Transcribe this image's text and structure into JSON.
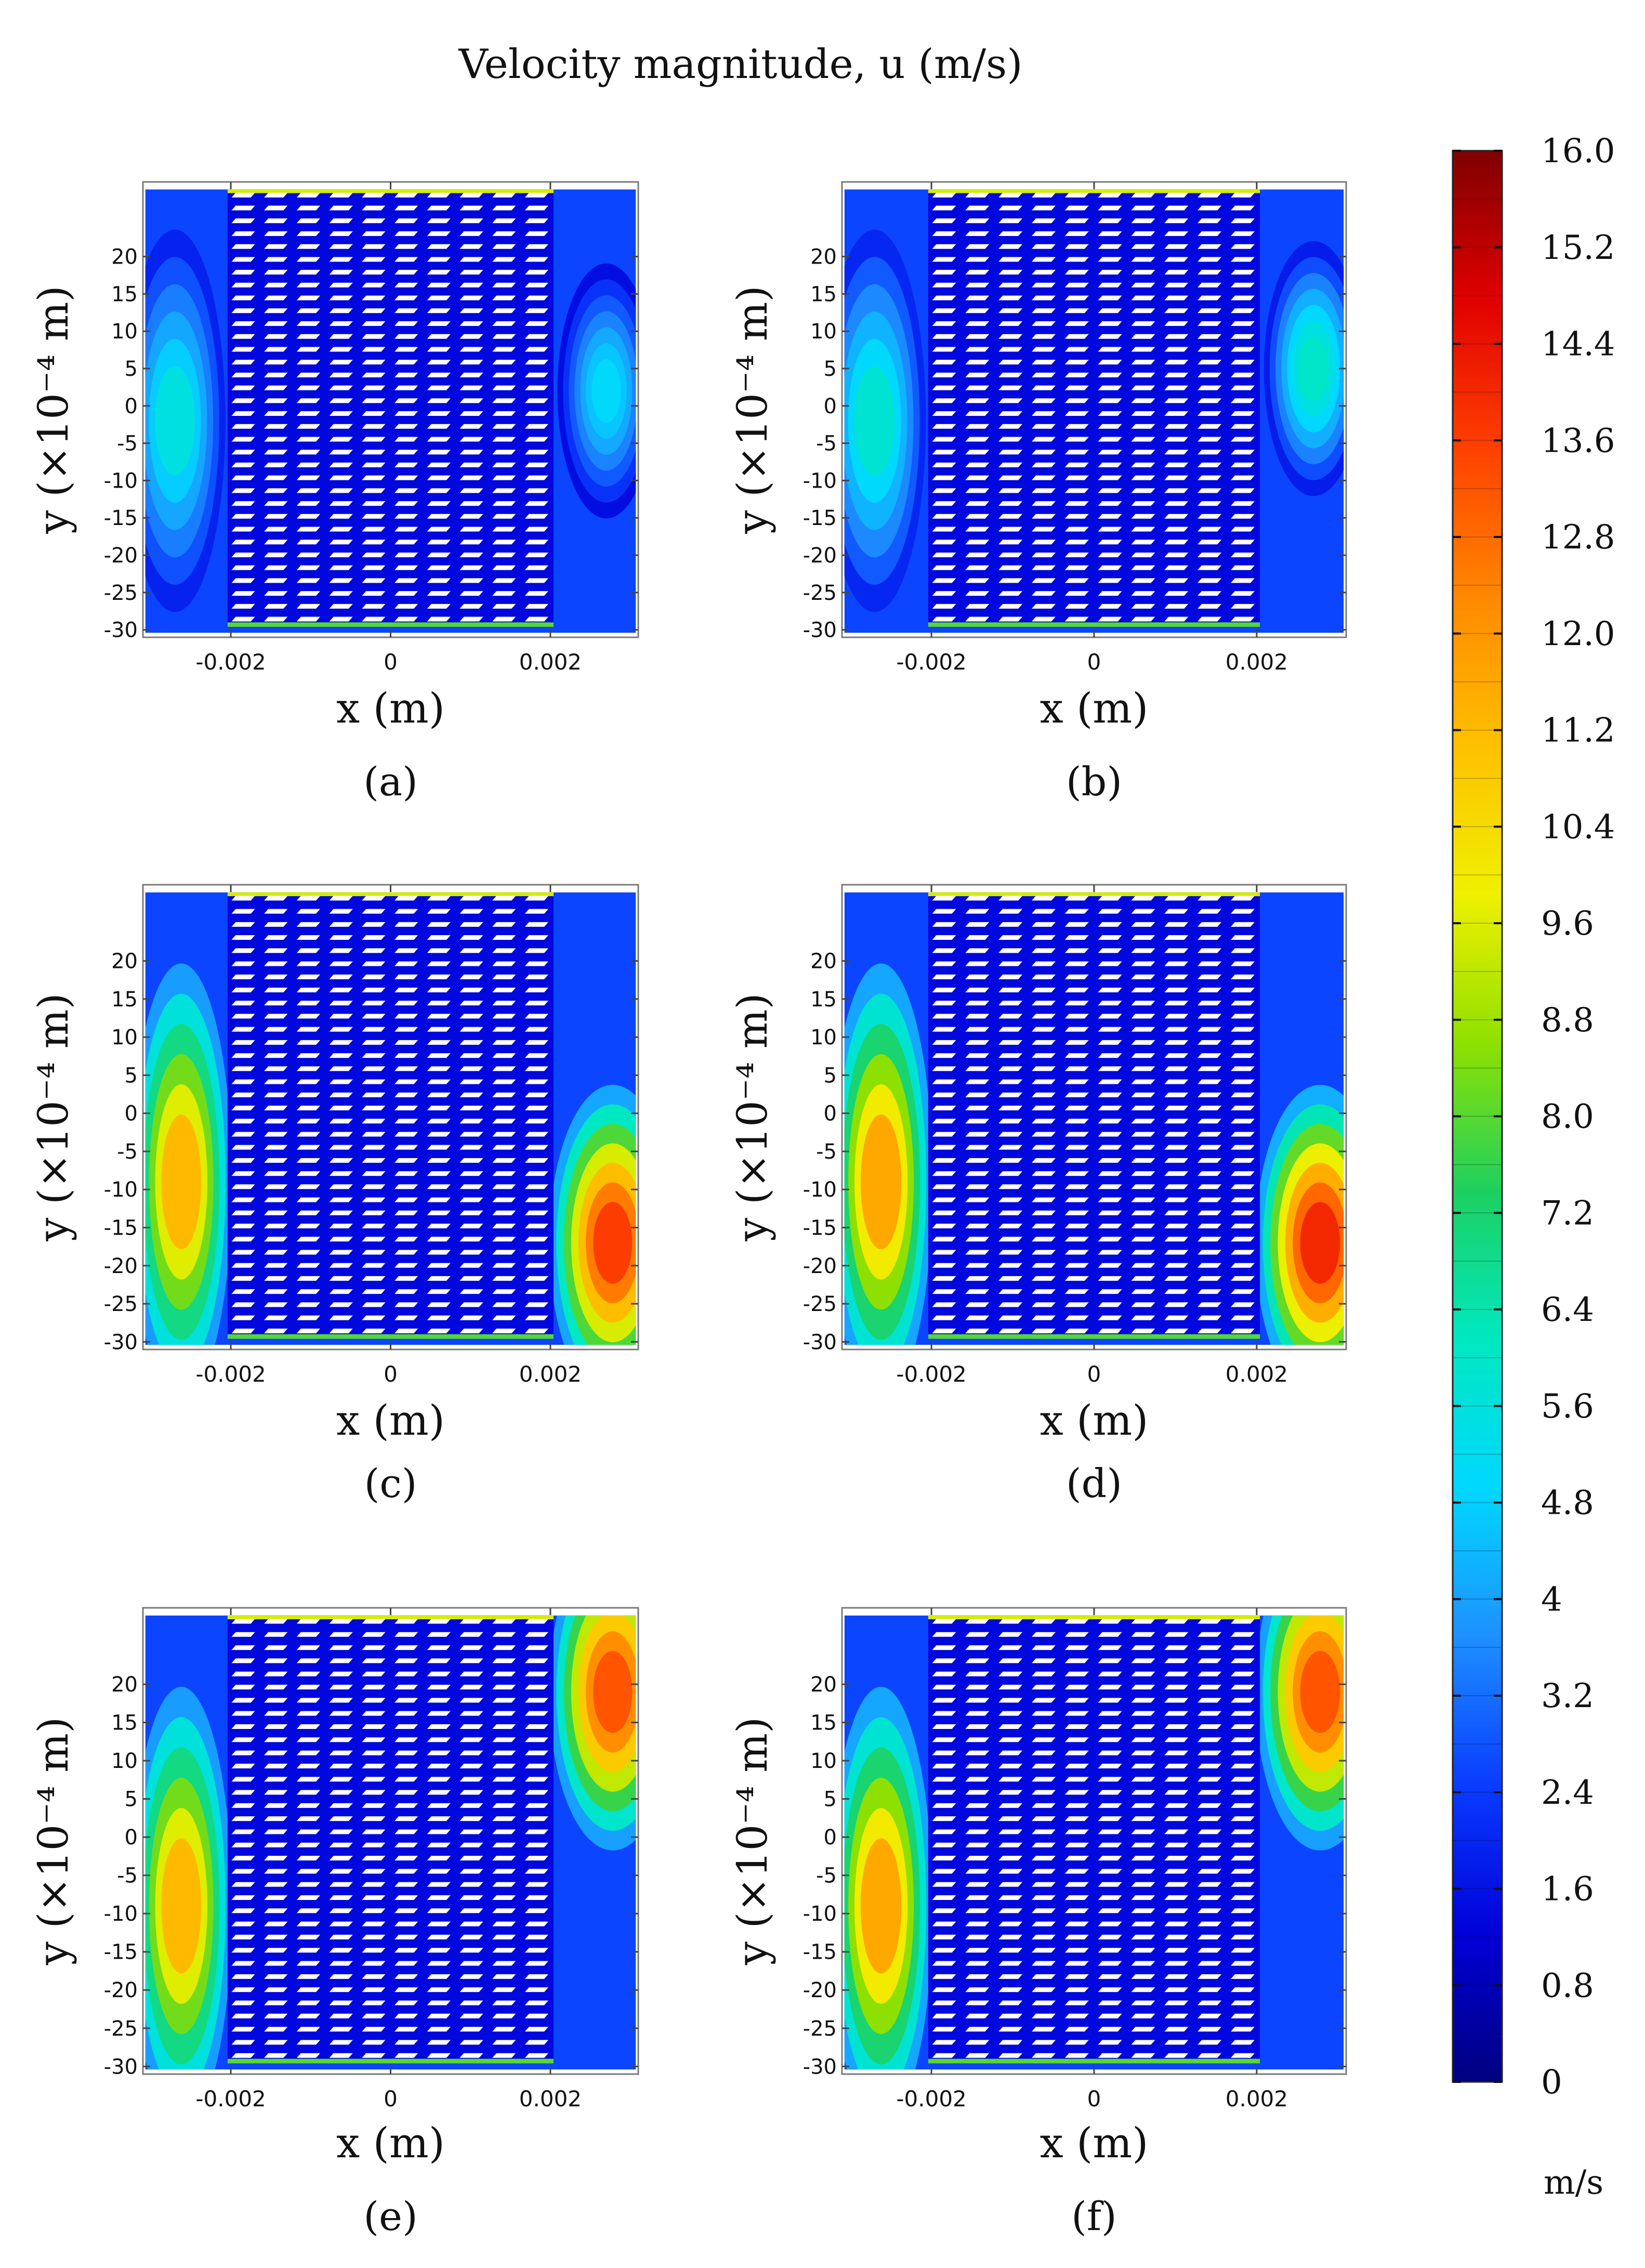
{
  "title": "Velocity magnitude, u (m/s)",
  "colorbar": {
    "unit": "m/s",
    "tick_labels": [
      "16.0",
      "15.2",
      "14.4",
      "13.6",
      "12.8",
      "12.0",
      "11.2",
      "10.4",
      "9.6",
      "8.8",
      "8.0",
      "7.2",
      "6.4",
      "5.6",
      "4.8",
      "4",
      "3.2",
      "2.4",
      "1.6",
      "0.8",
      "0"
    ],
    "stops": [
      "#00007f",
      "#0000d8",
      "#0a3cff",
      "#1e90ff",
      "#00d8ff",
      "#00e8c0",
      "#1ed060",
      "#90e000",
      "#f0f000",
      "#ffc000",
      "#ff8800",
      "#ff4000",
      "#e00000",
      "#7f0000"
    ]
  },
  "chart_data": [
    {
      "type": "heatmap",
      "panel_label": "(a)",
      "xlabel": "x (m)",
      "ylabel": "y (×10⁻⁴ m)",
      "xticks": [
        "-0.002",
        "0",
        "0.002"
      ],
      "yticks": [
        "20",
        "15",
        "10",
        "5",
        "0",
        "-5",
        "-10",
        "-15",
        "-20",
        "-25",
        "-30"
      ],
      "xlim": [
        -0.0031,
        0.0031
      ],
      "ylim": [
        -31,
        30
      ],
      "inlet_max_velocity": 5.5,
      "outlet_max_velocity": 5.0,
      "outlet_hotspot_y": 2
    },
    {
      "type": "heatmap",
      "panel_label": "(b)",
      "xlabel": "x (m)",
      "ylabel": "y (×10⁻⁴ m)",
      "xticks": [
        "-0.002",
        "0",
        "0.002"
      ],
      "yticks": [
        "20",
        "15",
        "10",
        "5",
        "0",
        "-5",
        "-10",
        "-15",
        "-20",
        "-25",
        "-30"
      ],
      "xlim": [
        -0.0031,
        0.0031
      ],
      "ylim": [
        -31,
        30
      ],
      "inlet_max_velocity": 5.8,
      "outlet_max_velocity": 6.0,
      "outlet_hotspot_y": 5
    },
    {
      "type": "heatmap",
      "panel_label": "(c)",
      "xlabel": "x (m)",
      "ylabel": "y (×10⁻⁴ m)",
      "xticks": [
        "-0.002",
        "0",
        "0.002"
      ],
      "yticks": [
        "20",
        "15",
        "10",
        "5",
        "0",
        "-5",
        "-10",
        "-15",
        "-20",
        "-25",
        "-30"
      ],
      "xlim": [
        -0.0031,
        0.0031
      ],
      "ylim": [
        -31,
        30
      ],
      "inlet_max_velocity": 11.2,
      "outlet_max_velocity": 13.6,
      "outlet_hotspot_y": -17
    },
    {
      "type": "heatmap",
      "panel_label": "(d)",
      "xlabel": "x (m)",
      "ylabel": "y (×10⁻⁴ m)",
      "xticks": [
        "-0.002",
        "0",
        "0.002"
      ],
      "yticks": [
        "20",
        "15",
        "10",
        "5",
        "0",
        "-5",
        "-10",
        "-15",
        "-20",
        "-25",
        "-30"
      ],
      "xlim": [
        -0.0031,
        0.0031
      ],
      "ylim": [
        -31,
        30
      ],
      "inlet_max_velocity": 11.6,
      "outlet_max_velocity": 14.0,
      "outlet_hotspot_y": -17
    },
    {
      "type": "heatmap",
      "panel_label": "(e)",
      "xlabel": "x (m)",
      "ylabel": "y (×10⁻⁴ m)",
      "xticks": [
        "-0.002",
        "0",
        "0.002"
      ],
      "yticks": [
        "20",
        "15",
        "10",
        "5",
        "0",
        "-5",
        "-10",
        "-15",
        "-20",
        "-25",
        "-30"
      ],
      "xlim": [
        -0.0031,
        0.0031
      ],
      "ylim": [
        -31,
        30
      ],
      "inlet_max_velocity": 11.2,
      "outlet_max_velocity": 13.2,
      "outlet_hotspot_y": 19
    },
    {
      "type": "heatmap",
      "panel_label": "(f)",
      "xlabel": "x (m)",
      "ylabel": "y (×10⁻⁴ m)",
      "xticks": [
        "-0.002",
        "0",
        "0.002"
      ],
      "yticks": [
        "20",
        "15",
        "10",
        "5",
        "0",
        "-5",
        "-10",
        "-15",
        "-20",
        "-25",
        "-30"
      ],
      "xlim": [
        -0.0031,
        0.0031
      ],
      "ylim": [
        -31,
        30
      ],
      "inlet_max_velocity": 11.6,
      "outlet_max_velocity": 13.2,
      "outlet_hotspot_y": 19
    }
  ]
}
